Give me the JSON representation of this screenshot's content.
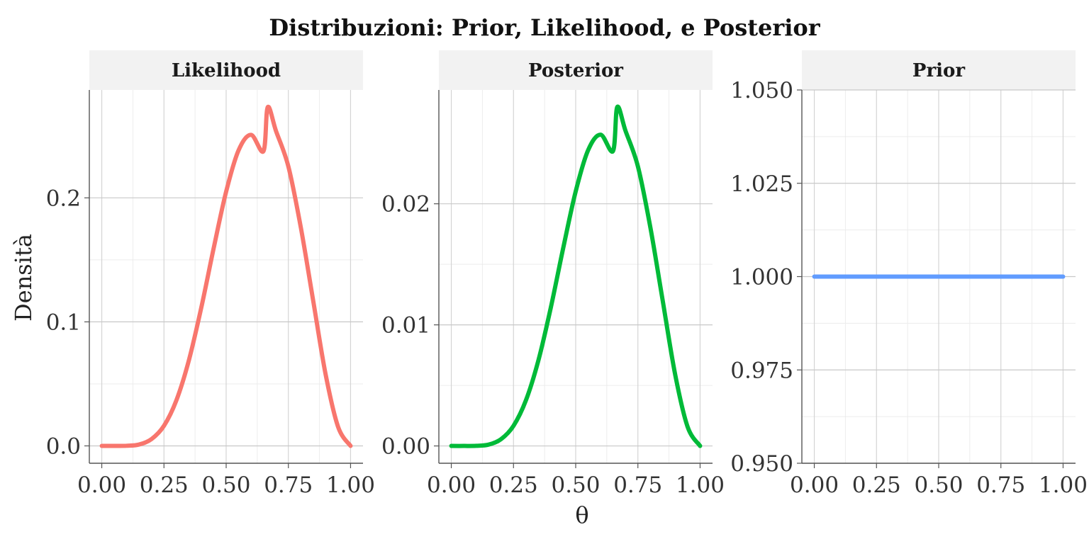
{
  "chart_data": {
    "type": "line",
    "title": "Distribuzioni: Prior, Likelihood, e Posterior",
    "xlabel": "θ",
    "ylabel": "Densità",
    "grid": true,
    "legend": "none",
    "panels": [
      {
        "strip": "Likelihood",
        "color": "#F8766D",
        "xlim": [
          -0.05,
          1.05
        ],
        "ylim": [
          -0.014,
          0.287
        ],
        "x_ticks": [
          "0.00",
          "0.25",
          "0.50",
          "0.75",
          "1.00"
        ],
        "y_ticks": [
          "0.0",
          "0.1",
          "0.2"
        ],
        "y_tick_values": [
          0.0,
          0.1,
          0.2
        ],
        "series": [
          {
            "x": [
              0.0,
              0.05,
              0.1,
              0.15,
              0.2,
              0.25,
              0.3,
              0.35,
              0.4,
              0.45,
              0.5,
              0.55,
              0.6,
              0.65,
              0.667,
              0.7,
              0.75,
              0.8,
              0.85,
              0.9,
              0.95,
              1.0
            ],
            "y": [
              0.0,
              0.0,
              0.0001,
              0.0011,
              0.0055,
              0.0162,
              0.0368,
              0.0689,
              0.1115,
              0.1596,
              0.2051,
              0.2384,
              0.2508,
              0.2377,
              0.2731,
              0.2541,
              0.2253,
              0.1762,
              0.1168,
              0.0574,
              0.0153,
              0.0
            ]
          }
        ]
      },
      {
        "strip": "Posterior",
        "color": "#00BA38",
        "xlim": [
          -0.05,
          1.05
        ],
        "ylim": [
          -0.00143,
          0.0294
        ],
        "x_ticks": [
          "0.00",
          "0.25",
          "0.50",
          "0.75",
          "1.00"
        ],
        "y_ticks": [
          "0.00",
          "0.01",
          "0.02"
        ],
        "y_tick_values": [
          0.0,
          0.01,
          0.02
        ],
        "series": [
          {
            "x": [
              0.0,
              0.05,
              0.1,
              0.15,
              0.2,
              0.25,
              0.3,
              0.35,
              0.4,
              0.45,
              0.5,
              0.55,
              0.6,
              0.65,
              0.667,
              0.7,
              0.75,
              0.8,
              0.85,
              0.9,
              0.95,
              1.0
            ],
            "y": [
              0.0,
              0.0,
              1e-05,
              0.00011,
              0.00056,
              0.00166,
              0.00377,
              0.00706,
              0.01143,
              0.01636,
              0.02102,
              0.02443,
              0.02571,
              0.02436,
              0.02799,
              0.02604,
              0.02309,
              0.01806,
              0.01197,
              0.00588,
              0.00157,
              0.0
            ]
          }
        ]
      },
      {
        "strip": "Prior",
        "color": "#619CFF",
        "xlim": [
          -0.05,
          1.05
        ],
        "ylim": [
          0.95,
          1.05
        ],
        "x_ticks": [
          "0.00",
          "0.25",
          "0.50",
          "0.75",
          "1.00"
        ],
        "y_ticks": [
          "0.950",
          "0.975",
          "1.000",
          "1.025",
          "1.050"
        ],
        "y_tick_values": [
          0.95,
          0.975,
          1.0,
          1.025,
          1.05
        ],
        "series": [
          {
            "x": [
              0.0,
              1.0
            ],
            "y": [
              1.0,
              1.0
            ]
          }
        ]
      }
    ]
  }
}
